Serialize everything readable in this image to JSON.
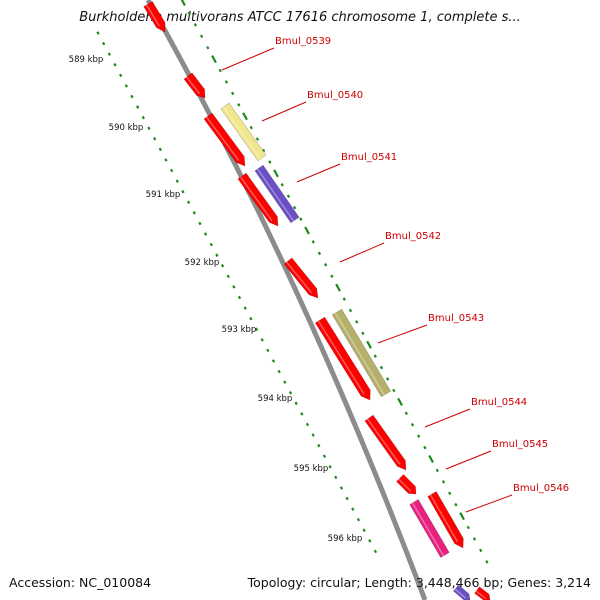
{
  "title": "Burkholderia multivorans ATCC 17616 chromosome 1, complete s...",
  "accession_text": "Accession: NC_010084",
  "stats_text": "Topology: circular; Length: 3,448,466 bp; Genes: 3,214",
  "scale_ticks": [
    "589 kbp",
    "590 kbp",
    "591 kbp",
    "592 kbp",
    "593 kbp",
    "594 kbp",
    "595 kbp",
    "596 kbp"
  ],
  "genes": [
    {
      "label": "Bmul_0539",
      "color": "#ff0000"
    },
    {
      "label": "Bmul_0540",
      "color": "#ff0000"
    },
    {
      "label": "Bmul_0541",
      "color": "#ff0000"
    },
    {
      "label": "Bmul_0542",
      "color": "#ff0000"
    },
    {
      "label": "Bmul_0543",
      "color": "#ff0000"
    },
    {
      "label": "Bmul_0544",
      "color": "#ff0000"
    },
    {
      "label": "Bmul_0545",
      "color": "#ff0000"
    },
    {
      "label": "Bmul_0546",
      "color": "#ff0000"
    }
  ],
  "features": [
    {
      "kind": "gene-arrow",
      "color": "#ff0000"
    },
    {
      "kind": "gene-arrow",
      "color": "#ff0000"
    },
    {
      "kind": "gene-arrow",
      "color": "#ff0000"
    },
    {
      "kind": "gene-arrow",
      "color": "#ff0000"
    },
    {
      "kind": "gene-arrow",
      "color": "#ff0000"
    },
    {
      "kind": "gene-arrow",
      "color": "#ff0000"
    },
    {
      "kind": "gene-arrow",
      "color": "#ff0000"
    },
    {
      "kind": "gene-arrow",
      "color": "#ff0000"
    },
    {
      "kind": "cog-bar",
      "color": "#e8207f"
    },
    {
      "kind": "cog-bar",
      "color": "#f0e68c"
    },
    {
      "kind": "cog-bar",
      "color": "#6a4fc4"
    },
    {
      "kind": "cog-bar",
      "color": "#b6b06a"
    }
  ],
  "colors": {
    "backbone": "#8c8c8c",
    "gc_skew": "#1a8a1a",
    "label_line": "#cc0000"
  }
}
